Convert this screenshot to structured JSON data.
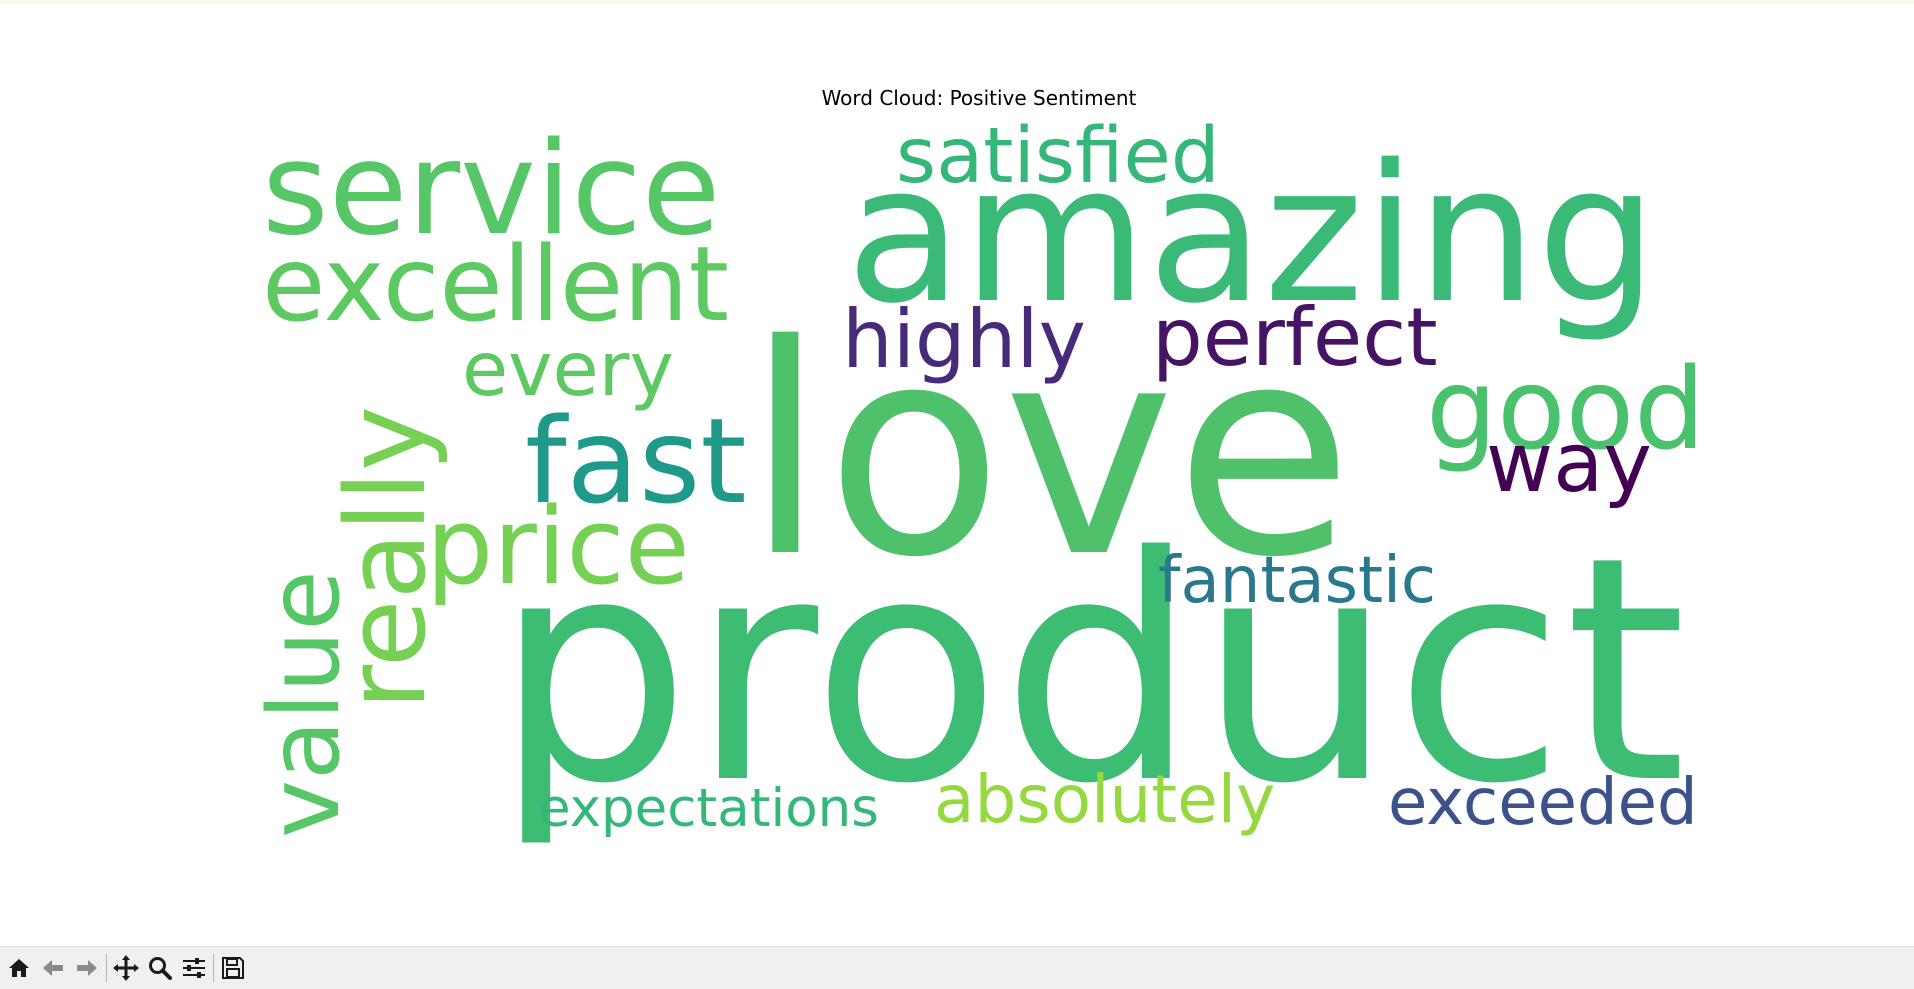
{
  "figure": {
    "title": "Word Cloud: Positive Sentiment"
  },
  "chart_data": {
    "type": "wordcloud",
    "title": "Word Cloud: Positive Sentiment",
    "colormap": "viridis",
    "words": [
      {
        "text": "love",
        "color": "#4fc16b"
      },
      {
        "text": "product",
        "color": "#3dbc74"
      },
      {
        "text": "amazing",
        "color": "#3aba76"
      },
      {
        "text": "service",
        "color": "#56c667"
      },
      {
        "text": "excellent",
        "color": "#5ec962"
      },
      {
        "text": "satisfied",
        "color": "#35b779"
      },
      {
        "text": "highly",
        "color": "#472a7a"
      },
      {
        "text": "perfect",
        "color": "#471365"
      },
      {
        "text": "good",
        "color": "#4ac16d"
      },
      {
        "text": "way",
        "color": "#440154"
      },
      {
        "text": "fast",
        "color": "#1f9a8a"
      },
      {
        "text": "every",
        "color": "#5ec962"
      },
      {
        "text": "really",
        "color": "#75d054"
      },
      {
        "text": "value",
        "color": "#56c667"
      },
      {
        "text": "price",
        "color": "#75d054"
      },
      {
        "text": "fantastic",
        "color": "#2a788e"
      },
      {
        "text": "expectations",
        "color": "#35b779"
      },
      {
        "text": "absolutely",
        "color": "#95d840"
      },
      {
        "text": "exceeded",
        "color": "#3b528b"
      }
    ]
  },
  "toolbar": {
    "buttons": [
      {
        "name": "home-icon",
        "label": "Home"
      },
      {
        "name": "back-arrow-icon",
        "label": "Back"
      },
      {
        "name": "forward-arrow-icon",
        "label": "Forward"
      },
      {
        "name": "pan-icon",
        "label": "Pan"
      },
      {
        "name": "zoom-icon",
        "label": "Zoom"
      },
      {
        "name": "configure-subplots-icon",
        "label": "Configure subplots"
      },
      {
        "name": "save-icon",
        "label": "Save"
      }
    ]
  }
}
